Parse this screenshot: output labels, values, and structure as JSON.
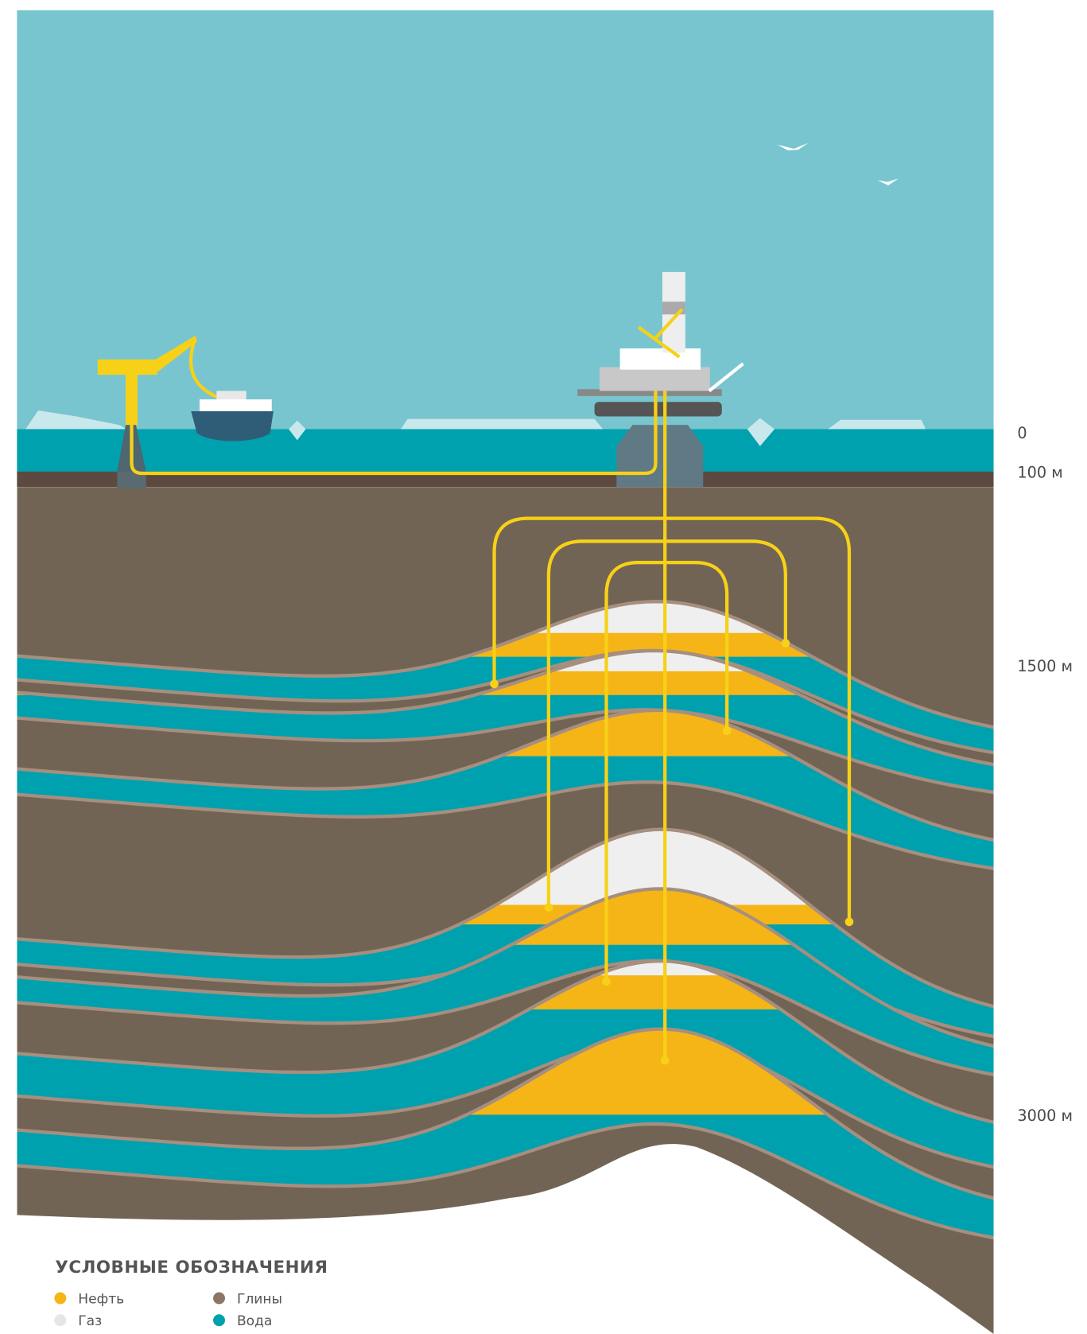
{
  "depth_scale": [
    "0",
    "100 м",
    "1500 м",
    "3000 м"
  ],
  "legend": {
    "title": "УСЛОВНЫЕ ОБОЗНАЧЕНИЯ",
    "items": [
      "Нефть",
      "Газ",
      "Глины",
      "Вода"
    ]
  }
}
